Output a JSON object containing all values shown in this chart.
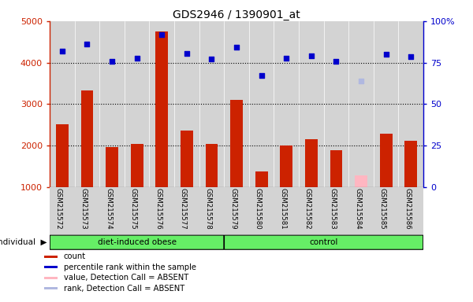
{
  "title": "GDS2946 / 1390901_at",
  "samples": [
    "GSM215572",
    "GSM215573",
    "GSM215574",
    "GSM215575",
    "GSM215576",
    "GSM215577",
    "GSM215578",
    "GSM215579",
    "GSM215580",
    "GSM215581",
    "GSM215582",
    "GSM215583",
    "GSM215584",
    "GSM215585",
    "GSM215586"
  ],
  "bar_values": [
    2520,
    3340,
    1960,
    2050,
    4750,
    2360,
    2050,
    3110,
    1380,
    2010,
    2160,
    1900,
    null,
    2280,
    2120
  ],
  "bar_absent_values": [
    null,
    null,
    null,
    null,
    null,
    null,
    null,
    null,
    null,
    null,
    null,
    null,
    1280,
    null,
    null
  ],
  "rank_values": [
    4270,
    4450,
    4030,
    4100,
    4680,
    4230,
    4080,
    4380,
    3700,
    4110,
    4170,
    4040,
    null,
    4200,
    4140
  ],
  "rank_absent_values": [
    null,
    null,
    null,
    null,
    null,
    null,
    null,
    null,
    null,
    null,
    null,
    null,
    3560,
    null,
    null
  ],
  "groups": [
    "diet-induced obese",
    "diet-induced obese",
    "diet-induced obese",
    "diet-induced obese",
    "diet-induced obese",
    "diet-induced obese",
    "diet-induced obese",
    "control",
    "control",
    "control",
    "control",
    "control",
    "control",
    "control",
    "control"
  ],
  "bar_color": "#cc2200",
  "bar_absent_color": "#ffb6c1",
  "rank_color": "#0000cc",
  "rank_absent_color": "#b0b8e0",
  "ylim_left": [
    1000,
    5000
  ],
  "ylim_right": [
    0,
    100
  ],
  "yticks_left": [
    1000,
    2000,
    3000,
    4000,
    5000
  ],
  "yticks_right": [
    0,
    25,
    50,
    75,
    100
  ],
  "grid_values": [
    2000,
    3000,
    4000
  ],
  "legend_items": [
    "count",
    "percentile rank within the sample",
    "value, Detection Call = ABSENT",
    "rank, Detection Call = ABSENT"
  ],
  "legend_colors": [
    "#cc2200",
    "#0000cc",
    "#ffb6c1",
    "#b0b8e0"
  ],
  "background_color": "#d3d3d3",
  "group_color": "#66ee66"
}
